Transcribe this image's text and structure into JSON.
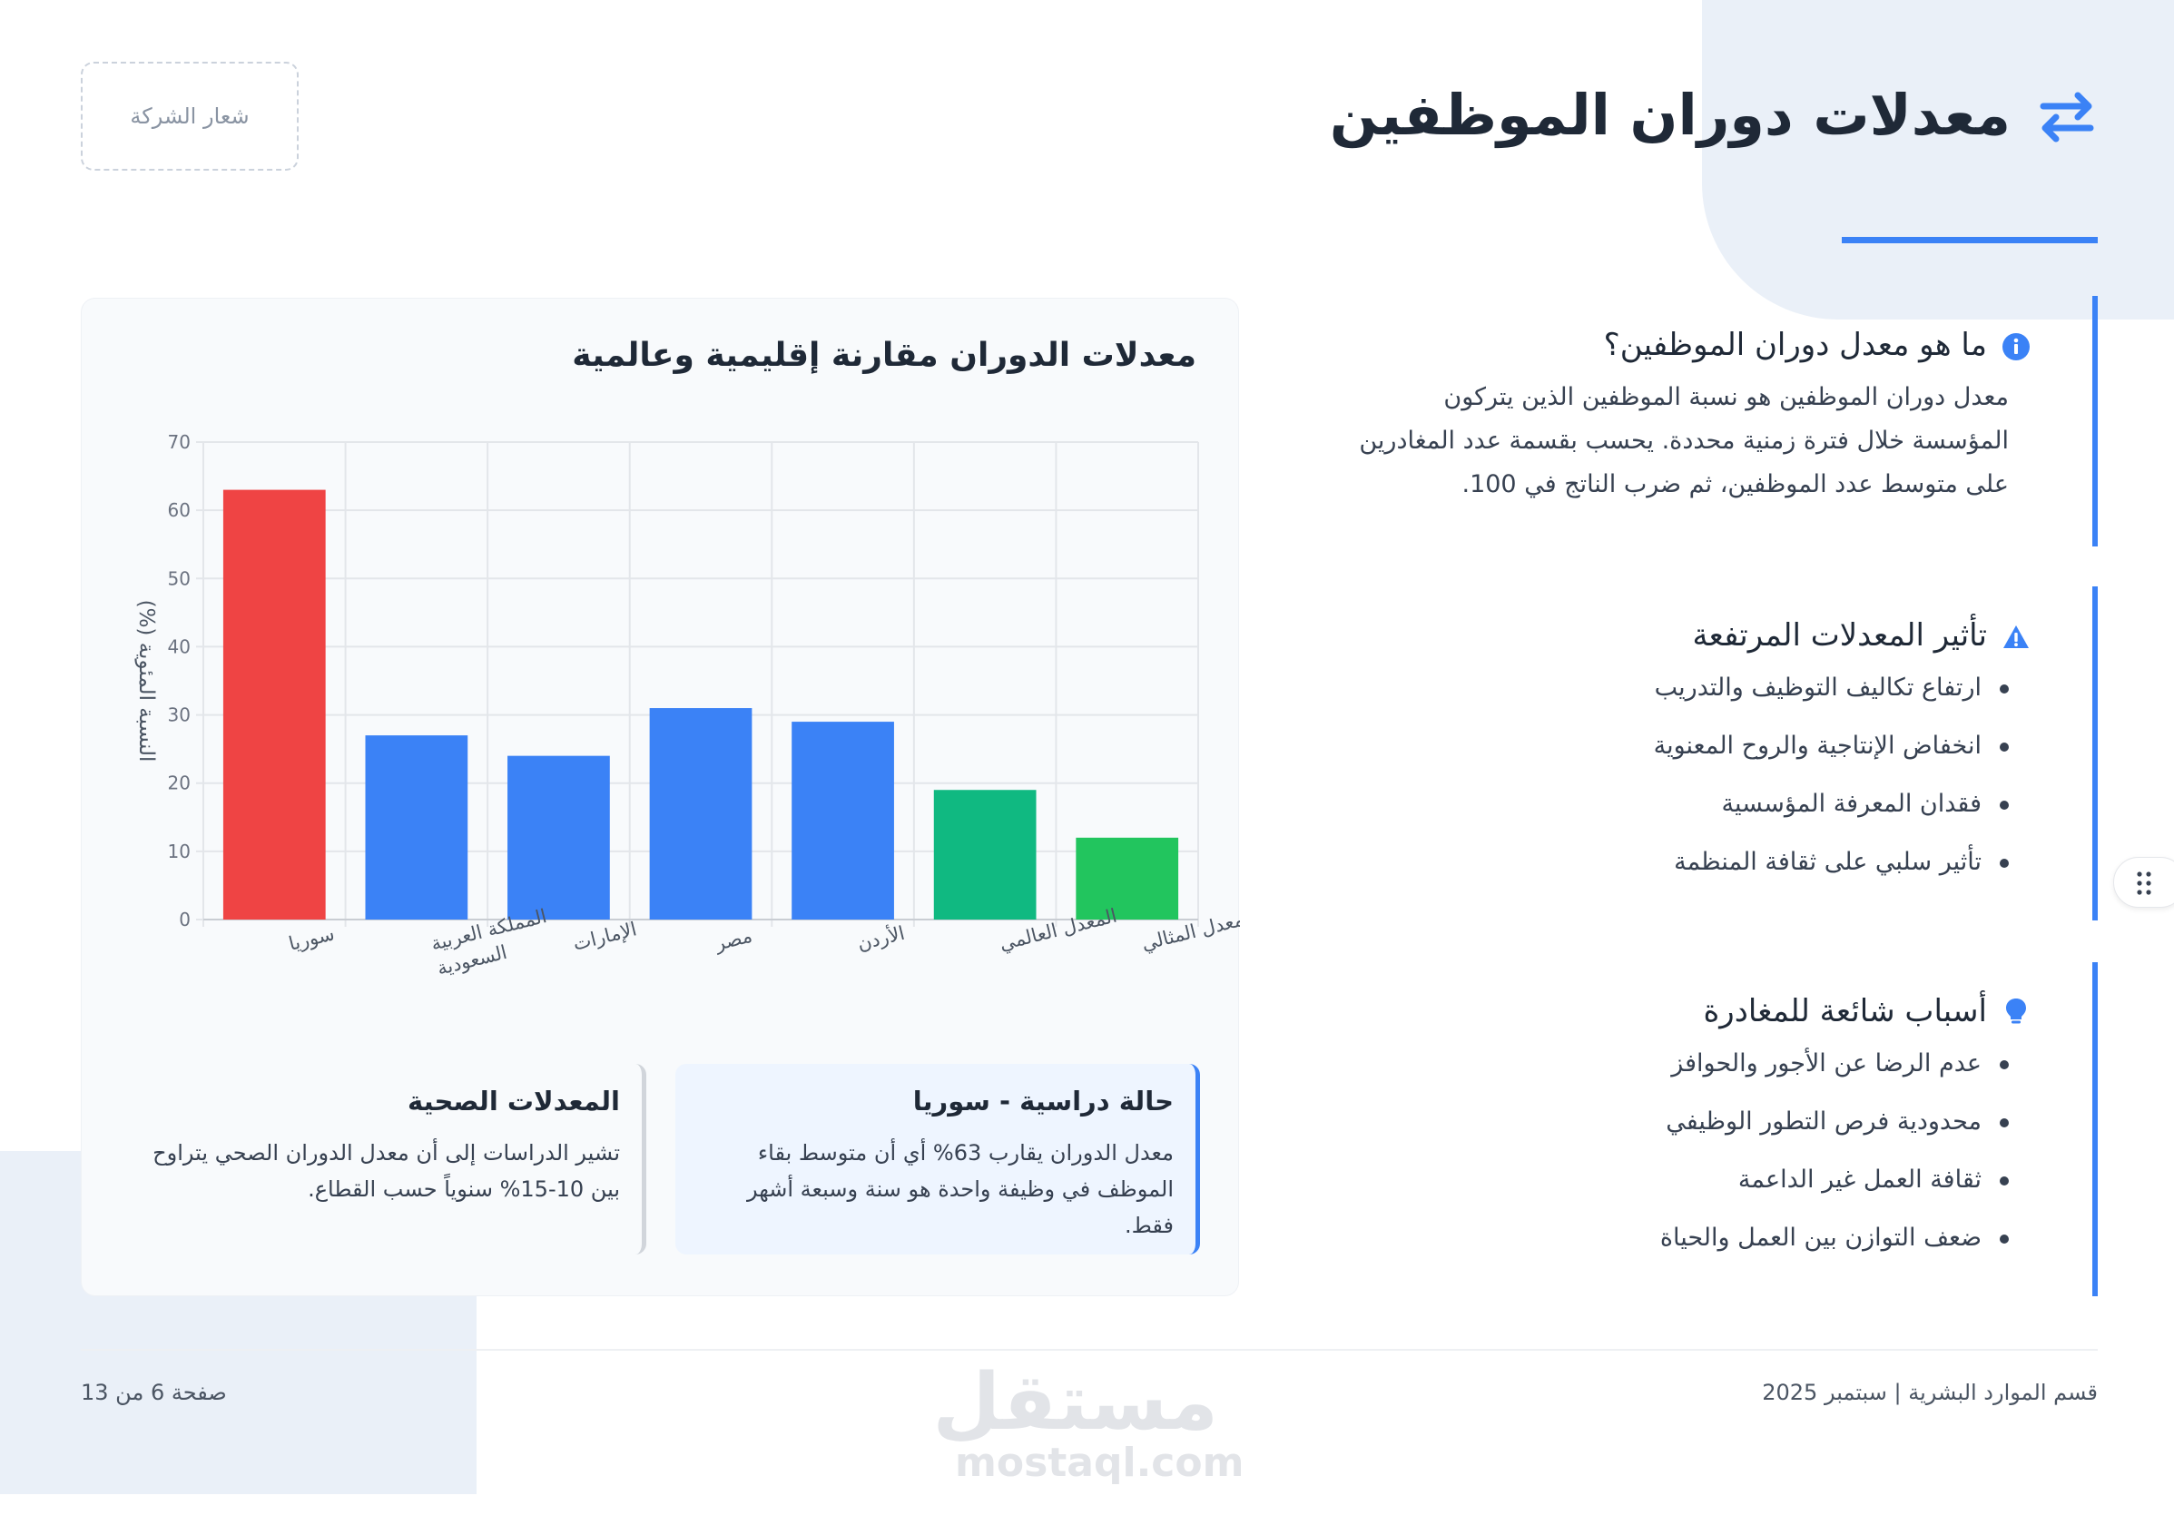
{
  "header": {
    "title": "معدلات دوران الموظفين",
    "title_icon": "exchange-arrows-icon",
    "logo_placeholder": "شعار الشركة",
    "accent_color": "#3b82f6"
  },
  "sections": {
    "definition": {
      "icon": "info-circle-icon",
      "title": "ما هو معدل دوران الموظفين؟",
      "lines": [
        "معدل دوران الموظفين هو نسبة الموظفين الذين يتركون",
        "المؤسسة خلال فترة زمنية محددة. يحسب بقسمة عدد المغادرين",
        "على متوسط عدد الموظفين، ثم ضرب الناتج في 100."
      ]
    },
    "impact": {
      "icon": "warning-triangle-icon",
      "title": "تأثير المعدلات المرتفعة",
      "items": [
        "ارتفاع تكاليف التوظيف والتدريب",
        "انخفاض الإنتاجية والروح المعنوية",
        "فقدان المعرفة المؤسسية",
        "تأثير سلبي على ثقافة المنظمة"
      ]
    },
    "reasons": {
      "icon": "lightbulb-icon",
      "title": "أسباب شائعة للمغادرة",
      "items": [
        "عدم الرضا عن الأجور والحوافز",
        "محدودية فرص التطور الوظيفي",
        "ثقافة العمل غير الداعمة",
        "ضعف التوازن بين العمل والحياة"
      ]
    }
  },
  "chart_data": {
    "type": "bar",
    "title": "معدلات الدوران مقارنة إقليمية وعالمية",
    "ylabel": "النسبة المئوية (%)",
    "xlabel": "",
    "ylim": [
      0,
      70
    ],
    "yticks": [
      0,
      10,
      20,
      30,
      40,
      50,
      60,
      70
    ],
    "grid": true,
    "categories": [
      [
        "سوريا"
      ],
      [
        "المملكة العربية",
        "السعودية"
      ],
      [
        "الإمارات"
      ],
      [
        "مصر"
      ],
      [
        "الأردن"
      ],
      [
        "المعدل العالمي"
      ],
      [
        "المعدل المثالي"
      ]
    ],
    "values": [
      63,
      27,
      24,
      31,
      29,
      19,
      12
    ],
    "colors": [
      "#ef4444",
      "#3b82f6",
      "#3b82f6",
      "#3b82f6",
      "#3b82f6",
      "#10b981",
      "#22c55e"
    ]
  },
  "cards": {
    "case_study": {
      "title": "حالة دراسية - سوريا",
      "body": "معدل الدوران يقارب 63% أي أن متوسط بقاء الموظف في وظيفة واحدة هو سنة وسبعة أشهر فقط."
    },
    "healthy": {
      "title": "المعدلات الصحية",
      "body": "تشير الدراسات إلى أن معدل الدوران الصحي يتراوح بين 10-15% سنوياً حسب القطاع."
    }
  },
  "footer": {
    "department": "قسم الموارد البشرية | سبتمبر 2025",
    "page": "صفحة 6 من 13",
    "watermark_ar": "مستقل",
    "watermark_en": "mostaql.com"
  }
}
